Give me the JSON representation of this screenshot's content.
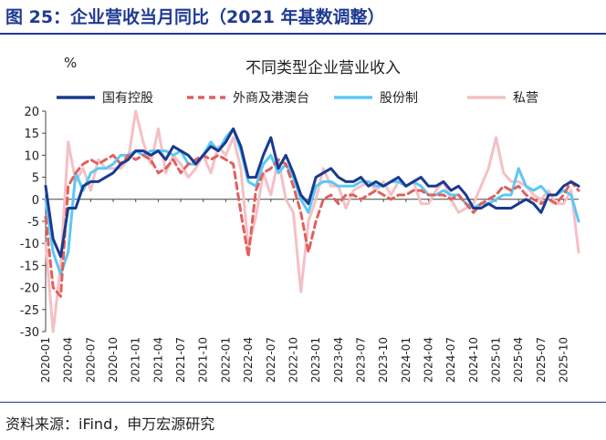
{
  "figure": {
    "title": "图 25：企业营收当月同比（2021 年基数调整）",
    "source": "资料来源：iFind，申万宏源研究"
  },
  "chart_data": {
    "type": "line",
    "title": "不同类型企业营业收入",
    "ylabel": "%",
    "xlabel": "",
    "ylim": [
      -30,
      20
    ],
    "yticks": [
      -30,
      -25,
      -20,
      -15,
      -10,
      -5,
      0,
      5,
      10,
      15,
      20
    ],
    "grid": false,
    "legend": "top",
    "xtick_labels": [
      "2020-01",
      "2020-04",
      "2020-07",
      "2020-10",
      "2021-01",
      "2021-04",
      "2021-07",
      "2021-10",
      "2022-01",
      "2022-04",
      "2022-07",
      "2022-10",
      "2023-01",
      "2023-04",
      "2023-07",
      "2023-10",
      "2024-01",
      "2024-04",
      "2024-07",
      "2024-10",
      "2025-01",
      "2025-04",
      "2025-07",
      "2025-10"
    ],
    "series": [
      {
        "name": "国有控股",
        "color": "#1a3a8f",
        "dash": "solid",
        "width": 3,
        "values": [
          3,
          -9,
          -13,
          -2,
          -2,
          3,
          4,
          4,
          5,
          6,
          8,
          9,
          11,
          11,
          10,
          11,
          9,
          12,
          11,
          10,
          8,
          10,
          12,
          11,
          13,
          16,
          12,
          5,
          5,
          10,
          14,
          7,
          10,
          6,
          1,
          -1,
          5,
          6,
          7,
          5,
          4,
          4,
          5,
          3,
          4,
          3,
          4,
          5,
          3,
          4,
          5,
          3,
          3,
          4,
          2,
          3,
          1,
          -2,
          -2,
          -1,
          -2,
          -2,
          -2,
          -1,
          0,
          -1,
          -3,
          1,
          1,
          3,
          4,
          3
        ]
      },
      {
        "name": "外商及港澳台",
        "color": "#e0605e",
        "dash": "dash",
        "width": 3,
        "values": [
          -4,
          -20,
          -22,
          3,
          6,
          8,
          9,
          8,
          9,
          10,
          8,
          10,
          9,
          10,
          9,
          6,
          7,
          9,
          6,
          8,
          9,
          10,
          9,
          10,
          9,
          8,
          -3,
          -13,
          2,
          6,
          7,
          9,
          8,
          3,
          -3,
          -12,
          -5,
          0,
          1,
          -1,
          1,
          1,
          0,
          1,
          2,
          1,
          0,
          1,
          1,
          2,
          2,
          1,
          1,
          1,
          0,
          1,
          -1,
          -3,
          -1,
          0,
          1,
          3,
          2,
          3,
          1,
          0,
          -1,
          0,
          -1,
          1,
          4,
          2
        ]
      },
      {
        "name": "股份制",
        "color": "#5bc8f5",
        "dash": "solid",
        "width": 3,
        "values": [
          0,
          -12,
          -17,
          -12,
          6,
          2,
          6,
          7,
          7,
          8,
          10,
          10,
          11,
          10,
          11,
          11,
          11,
          10,
          11,
          8,
          8,
          10,
          13,
          11,
          14,
          16,
          11,
          4,
          3,
          8,
          10,
          6,
          8,
          5,
          0,
          -3,
          3,
          4,
          4,
          3,
          3,
          3,
          4,
          4,
          3,
          3,
          4,
          4,
          3,
          4,
          3,
          1,
          1,
          2,
          1,
          1,
          -1,
          -2,
          -1,
          -1,
          0,
          1,
          1,
          7,
          3,
          2,
          3,
          1,
          1,
          2,
          1,
          -5
        ]
      },
      {
        "name": "私营",
        "color": "#f5c0c4",
        "dash": "solid",
        "width": 3,
        "values": [
          -10,
          -30,
          -15,
          13,
          4,
          7,
          2,
          9,
          7,
          7,
          7,
          9,
          20,
          13,
          8,
          16,
          6,
          10,
          8,
          5,
          7,
          10,
          6,
          12,
          10,
          14,
          7,
          -11,
          -4,
          6,
          1,
          9,
          0,
          -3,
          -21,
          -5,
          0,
          7,
          3,
          3,
          -2,
          2,
          3,
          4,
          2,
          4,
          1,
          4,
          3,
          4,
          -1,
          -1,
          2,
          4,
          0,
          -3,
          -2,
          -1,
          3,
          7,
          14,
          6,
          4,
          4,
          3,
          1,
          0,
          2,
          -1,
          -1,
          2,
          -12
        ]
      }
    ]
  }
}
